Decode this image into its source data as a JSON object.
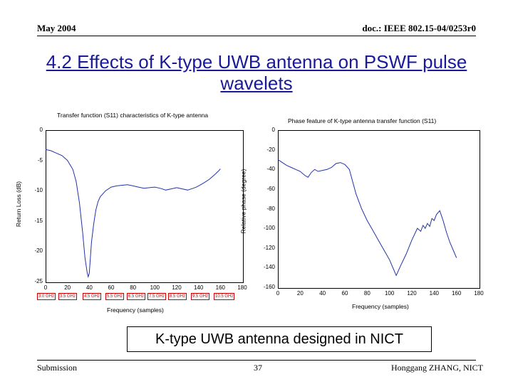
{
  "header": {
    "date": "May 2004",
    "doc": "doc.: IEEE 802.15-04/0253r0"
  },
  "slide": {
    "title": "4.2 Effects of K-type UWB antenna on PSWF pulse wavelets"
  },
  "caption": "K-type UWB antenna designed in NICT",
  "footer": {
    "left": "Submission",
    "page": "37",
    "right": "Honggang ZHANG, NICT"
  },
  "chart_data": [
    {
      "type": "line",
      "title": "Transfer function (S11) characteristics of K-type antenna",
      "xlabel": "Frequency (samples)",
      "ylabel": "Return Loss (dB)",
      "xlim": [
        0,
        180
      ],
      "ylim": [
        -25,
        0
      ],
      "xticks": [
        0,
        20,
        40,
        60,
        80,
        100,
        120,
        140,
        160,
        180
      ],
      "yticks": [
        0,
        -5,
        -10,
        -15,
        -20,
        -25
      ],
      "freq_labels": [
        "3.0 GHz",
        "3.5 GHz",
        "4.5 GHz",
        "5.5 GHz",
        "6.5 GHz",
        "7.5 GHz",
        "8.5 GHz",
        "9.5 GHz",
        "10.5 GHz"
      ],
      "grid": false,
      "series": [
        {
          "x": [
            0,
            5,
            10,
            15,
            20,
            25,
            28,
            31,
            34,
            36,
            38,
            39,
            40,
            41,
            42,
            44,
            46,
            48,
            50,
            55,
            60,
            65,
            70,
            75,
            80,
            85,
            90,
            95,
            100,
            105,
            110,
            115,
            120,
            125,
            130,
            135,
            138,
            140,
            145,
            150,
            155,
            158,
            160
          ],
          "y": [
            -3.2,
            -3.4,
            -3.8,
            -4.2,
            -5.0,
            -6.5,
            -8.5,
            -12.0,
            -17.0,
            -21.0,
            -23.5,
            -24.2,
            -23.6,
            -21.0,
            -18.5,
            -15.5,
            -13.2,
            -11.8,
            -11.0,
            -10.0,
            -9.4,
            -9.2,
            -9.1,
            -9.0,
            -9.2,
            -9.4,
            -9.6,
            -9.5,
            -9.4,
            -9.6,
            -9.9,
            -9.7,
            -9.5,
            -9.7,
            -9.9,
            -9.6,
            -9.4,
            -9.2,
            -8.7,
            -8.1,
            -7.3,
            -6.8,
            -6.4
          ]
        }
      ]
    },
    {
      "type": "line",
      "title": "Phase feature of K-type antenna transfer function (S11)",
      "xlabel": "Frequency (samples)",
      "ylabel": "Relative phase (degree)",
      "xlim": [
        0,
        180
      ],
      "ylim": [
        -160,
        0
      ],
      "xticks": [
        0,
        20,
        40,
        60,
        80,
        100,
        120,
        140,
        160,
        180
      ],
      "yticks": [
        0,
        -20,
        -40,
        -60,
        -80,
        -100,
        -120,
        -140,
        -160
      ],
      "grid": false,
      "series": [
        {
          "x": [
            0,
            4,
            8,
            12,
            16,
            20,
            24,
            27,
            30,
            33,
            36,
            40,
            44,
            48,
            52,
            56,
            60,
            64,
            70,
            75,
            80,
            85,
            90,
            95,
            100,
            103,
            106,
            110,
            115,
            120,
            125,
            128,
            130,
            132,
            134,
            136,
            138,
            140,
            142,
            145,
            148,
            151,
            154,
            157,
            160
          ],
          "y": [
            -30,
            -33,
            -36,
            -38,
            -40,
            -42,
            -46,
            -48,
            -43,
            -40,
            -42,
            -41,
            -40,
            -38,
            -34,
            -33,
            -35,
            -40,
            -65,
            -80,
            -92,
            -102,
            -112,
            -122,
            -132,
            -140,
            -148,
            -138,
            -126,
            -112,
            -100,
            -103,
            -97,
            -100,
            -95,
            -98,
            -90,
            -92,
            -86,
            -82,
            -92,
            -104,
            -114,
            -122,
            -130
          ]
        }
      ]
    }
  ]
}
